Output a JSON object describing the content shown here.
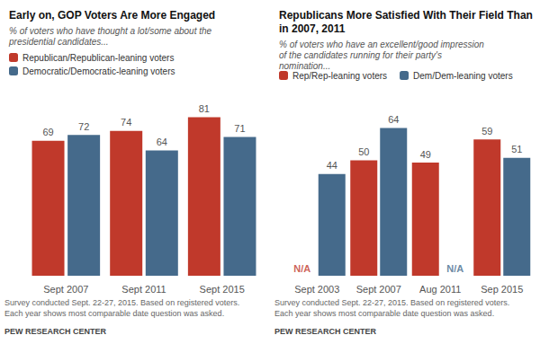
{
  "chart_data": [
    {
      "type": "bar",
      "title": "Early on, GOP Voters Are More Engaged",
      "subtitle": "% of voters who have thought a lot/some about the presidential candidates...",
      "categories": [
        "Sept 2007",
        "Sept 2011",
        "Sept 2015"
      ],
      "series": [
        {
          "name": "Republican/Republican-leaning voters",
          "color": "#c0392b",
          "values": [
            69,
            74,
            81
          ]
        },
        {
          "name": "Democratic/Democratic-leaning voters",
          "color": "#456a8b",
          "values": [
            72,
            64,
            71
          ]
        }
      ],
      "ylim": [
        0,
        90
      ],
      "grid": false,
      "legend": "top-left",
      "data_labels": true,
      "tick_labels": "x",
      "annotations": [
        "Survey conducted Sept. 22-27, 2015. Based on registered voters.",
        "Each year shows most comparable date question was asked.",
        "PEW RESEARCH CENTER"
      ]
    },
    {
      "type": "bar",
      "title": "Republicans More Satisfied With Their Field Than in 2007, 2011",
      "subtitle": "% of voters who have an excellent/good impression of the candidates running for their party's nomination...",
      "categories": [
        "Sept 2003",
        "Sept 2007",
        "Aug 2011",
        "Sep 2015"
      ],
      "series": [
        {
          "name": "Rep/Rep-leaning voters",
          "color": "#c0392b",
          "values": [
            null,
            50,
            49,
            59
          ],
          "value_labels": [
            "N/A",
            "50",
            "49",
            "59"
          ]
        },
        {
          "name": "Dem/Dem-leaning voters",
          "color": "#456a8b",
          "values": [
            44,
            64,
            null,
            51
          ],
          "value_labels": [
            "44",
            "64",
            "N/A",
            "51"
          ]
        }
      ],
      "ylim": [
        0,
        70
      ],
      "grid": false,
      "legend": "top-left",
      "data_labels": true,
      "tick_labels": "x",
      "annotations": [
        "Survey conducted Sept. 22-27, 2015. Based on registered voters.",
        "Each year shows most comparable date question was asked.",
        "PEW RESEARCH CENTER"
      ]
    }
  ]
}
